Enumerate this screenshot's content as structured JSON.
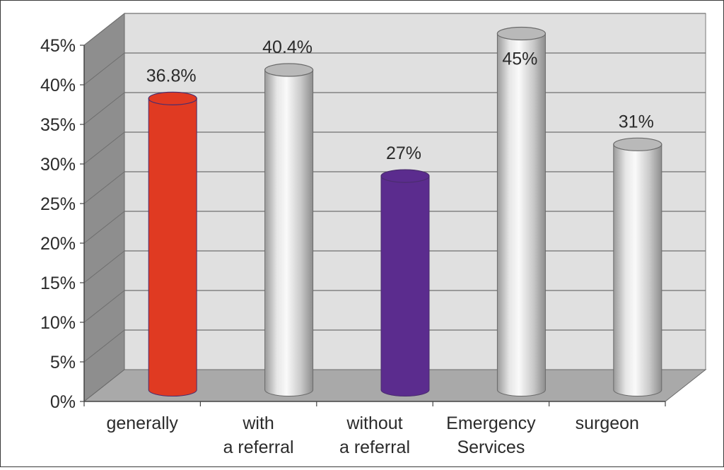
{
  "chart_data": {
    "type": "bar",
    "categories": [
      "generally",
      "with\na referral",
      "without\na referral",
      "Emergency\nServices",
      "surgeon"
    ],
    "values": [
      36.8,
      40.4,
      27,
      45,
      31
    ],
    "data_labels": [
      "36.8%",
      "40.4%",
      "27%",
      "45%",
      "31%"
    ],
    "ylim": [
      0,
      45
    ],
    "yticks": [
      "0%",
      "5%",
      "10%",
      "15%",
      "20%",
      "25%",
      "30%",
      "35%",
      "40%",
      "45%"
    ],
    "grid": true,
    "colors": {
      "highlight_generally": "#e03a22",
      "highlight_without_referral": "#5b2c8e",
      "default_bar": "#cfcfcf",
      "wall": "#e0e0e0",
      "floor": "#a9a9a9",
      "side_wall": "#8e8e8e"
    },
    "bar_colors": [
      "#e03a22",
      "#cfcfcf",
      "#5b2c8e",
      "#cfcfcf",
      "#cfcfcf"
    ]
  }
}
